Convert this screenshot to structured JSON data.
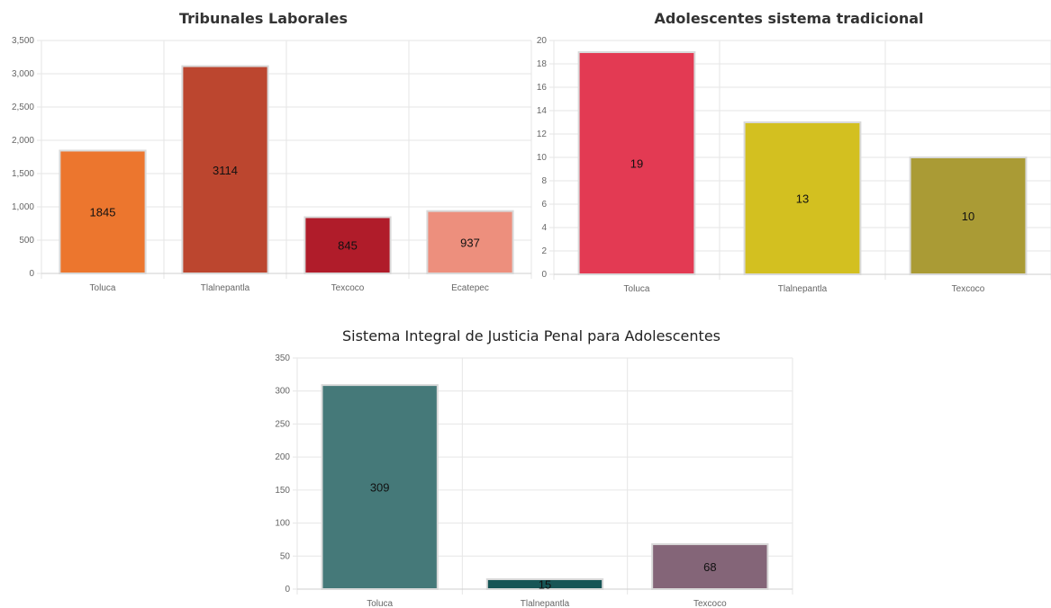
{
  "chart_data": [
    {
      "type": "bar",
      "title": "Tribunales Laborales",
      "categories": [
        "Toluca",
        "Tlalnepantla",
        "Texcoco",
        "Ecatepec"
      ],
      "values": [
        1845,
        3114,
        845,
        937
      ],
      "data_labels": [
        "1845",
        "3114",
        "845",
        "937"
      ],
      "colors": [
        "#ec762e",
        "#bc462f",
        "#b01c2a",
        "#ed8f7d"
      ],
      "ylim": [
        0,
        3500
      ],
      "yticks": [
        0,
        500,
        1000,
        1500,
        2000,
        2500,
        3000,
        3500
      ],
      "ytick_labels": [
        "0",
        "500",
        "1,000",
        "1,500",
        "2,000",
        "2,500",
        "3,000",
        "3,500"
      ],
      "grid": true
    },
    {
      "type": "bar",
      "title": "Adolescentes sistema tradicional",
      "categories": [
        "Toluca",
        "Tlalnepantla",
        "Texcoco"
      ],
      "values": [
        19,
        13,
        10
      ],
      "data_labels": [
        "19",
        "13",
        "10"
      ],
      "colors": [
        "#e33a53",
        "#d3c020",
        "#aa9b35"
      ],
      "ylim": [
        0,
        20
      ],
      "yticks": [
        0,
        2,
        4,
        6,
        8,
        10,
        12,
        14,
        16,
        18,
        20
      ],
      "ytick_labels": [
        "0",
        "2",
        "4",
        "6",
        "8",
        "10",
        "12",
        "14",
        "16",
        "18",
        "20"
      ],
      "grid": true
    },
    {
      "type": "bar",
      "title": "Sistema Integral de Justicia Penal para Adolescentes",
      "categories": [
        "Toluca",
        "Tlalnepantla",
        "Texcoco"
      ],
      "values": [
        309,
        15,
        68
      ],
      "data_labels": [
        "309",
        "15",
        "68"
      ],
      "colors": [
        "#457979",
        "#175556",
        "#846578"
      ],
      "ylim": [
        0,
        350
      ],
      "yticks": [
        0,
        50,
        100,
        150,
        200,
        250,
        300,
        350
      ],
      "ytick_labels": [
        "0",
        "50",
        "100",
        "150",
        "200",
        "250",
        "300",
        "350"
      ],
      "grid": true
    }
  ]
}
